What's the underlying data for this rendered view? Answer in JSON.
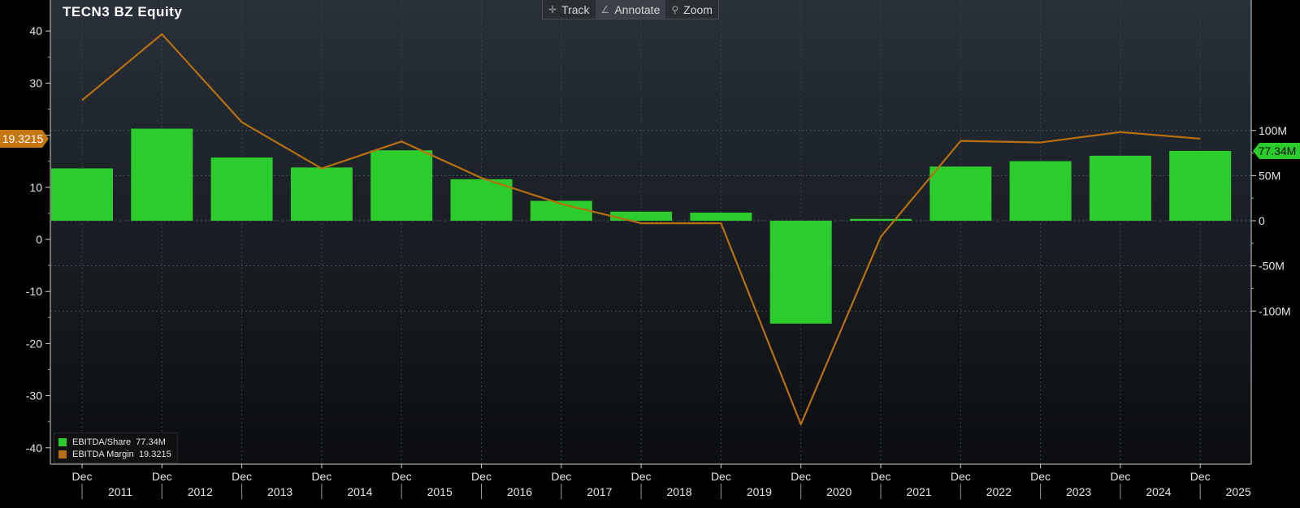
{
  "title": "TECN3 BZ Equity",
  "toolbar": {
    "track_label": "Track",
    "annotate_label": "Annotate",
    "zoom_label": "Zoom",
    "active": "Annotate"
  },
  "legend": {
    "items": [
      {
        "label": "EBITDA/Share",
        "value": "77.34M",
        "color": "#2bcc2b"
      },
      {
        "label": "EBITDA Margin",
        "value": "19.3215",
        "color": "#b8700f"
      }
    ]
  },
  "colors": {
    "bar": "#2bcc2b",
    "line": "#b8700f",
    "background_top": "#283039",
    "background_bottom": "#0c0e11"
  },
  "chart_data": {
    "type": "bar",
    "categories": [
      "Dec 2011",
      "Dec 2012",
      "Dec 2013",
      "Dec 2014",
      "Dec 2015",
      "Dec 2016",
      "Dec 2017",
      "Dec 2018",
      "Dec 2019",
      "Dec 2020",
      "Dec 2021",
      "Dec 2022",
      "Dec 2023",
      "Dec 2024",
      "Dec 2025"
    ],
    "x_tick_top_labels": [
      "Dec",
      "Dec",
      "Dec",
      "Dec",
      "Dec",
      "Dec",
      "Dec",
      "Dec",
      "Dec",
      "Dec",
      "Dec",
      "Dec",
      "Dec",
      "Dec",
      "Dec"
    ],
    "x_year_labels": [
      "2011",
      "2012",
      "2013",
      "2014",
      "2015",
      "2016",
      "2017",
      "2018",
      "2019",
      "2020",
      "2021",
      "2022",
      "2023",
      "2024",
      "2025"
    ],
    "series": [
      {
        "name": "EBITDA/Share",
        "axis": "right",
        "values": [
          58000000,
          102000000,
          70000000,
          59000000,
          78000000,
          46000000,
          22000000,
          10000000,
          9000000,
          -114000000,
          2000000,
          60000000,
          66000000,
          72000000,
          77340000
        ]
      },
      {
        "name": "EBITDA Margin",
        "axis": "left",
        "values": [
          26.7,
          39.4,
          22.5,
          13.6,
          18.8,
          11.8,
          6.8,
          3.1,
          3.1,
          -35.5,
          0.5,
          18.9,
          18.6,
          20.6,
          19.3215
        ]
      }
    ],
    "left_axis": {
      "ylim": [
        -43,
        44
      ],
      "ticks": [
        -40,
        -30,
        -20,
        -10,
        0,
        10,
        20,
        30,
        40
      ]
    },
    "right_axis": {
      "ylim": [
        -125000000,
        123000000
      ],
      "ticks": [
        -100000000,
        -50000000,
        0,
        50000000,
        100000000
      ],
      "tick_labels": [
        "-100M",
        "-50M",
        "0",
        "50M",
        "100M"
      ]
    },
    "last_value_labels": {
      "left": "19.3215",
      "right": "77.34M"
    },
    "grid": true
  }
}
